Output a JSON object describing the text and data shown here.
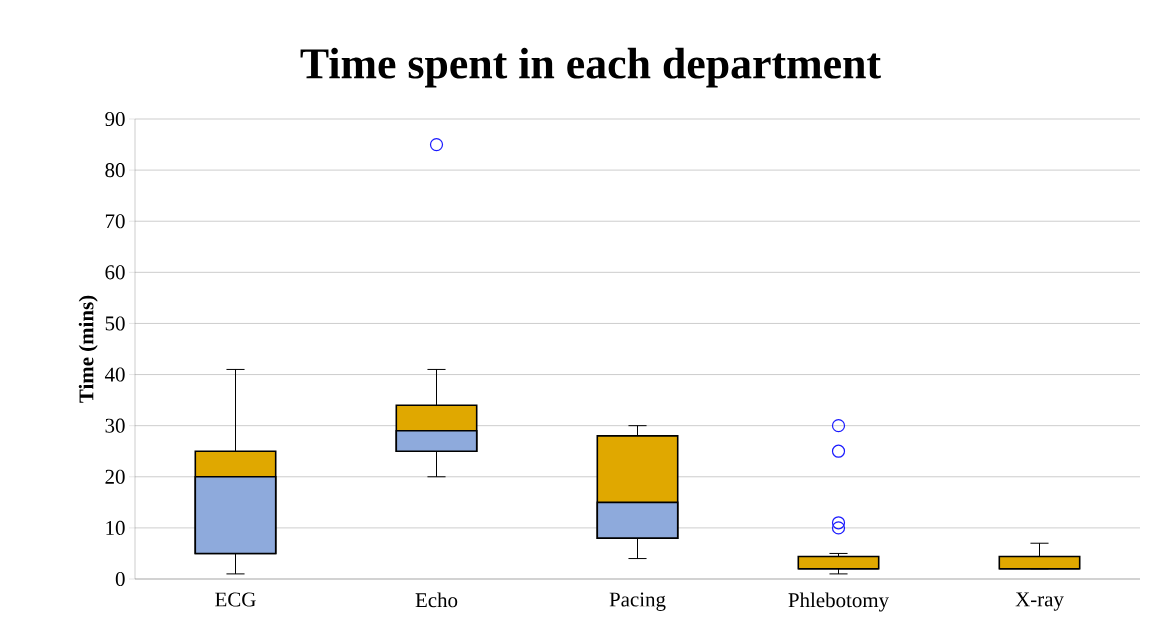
{
  "chart_data": {
    "type": "box",
    "title": "Time spent in each department",
    "ylabel": "Time (mins)",
    "categories": [
      "ECG",
      "Echo",
      "Pacing",
      "Phlebotomy",
      "X-ray"
    ],
    "boxes": [
      {
        "low": 1,
        "q1": 5,
        "median": 20,
        "q3": 25,
        "high": 41
      },
      {
        "low": 20,
        "q1": 25,
        "median": 29,
        "q3": 34,
        "high": 41,
        "outliers": [
          85
        ]
      },
      {
        "low": 4,
        "q1": 8,
        "median": 15,
        "q3": 28,
        "high": 30
      },
      {
        "low": 1,
        "q1": 2,
        "median": 2,
        "q3": 4.4,
        "high": 5,
        "outliers": [
          10,
          11,
          25,
          30
        ]
      },
      {
        "low": 2,
        "q1": 2,
        "median": 2,
        "q3": 4.4,
        "high": 7
      }
    ],
    "color": "#8eaadc",
    "colors": [
      "#e0a800",
      "#e0a800",
      "#e0a800",
      "#e0a800",
      "#e0a800"
    ],
    "ylim": [
      0,
      90
    ],
    "yticks": [
      0,
      10,
      20,
      30,
      40,
      50,
      60,
      70,
      80,
      90
    ],
    "grid": "y"
  }
}
